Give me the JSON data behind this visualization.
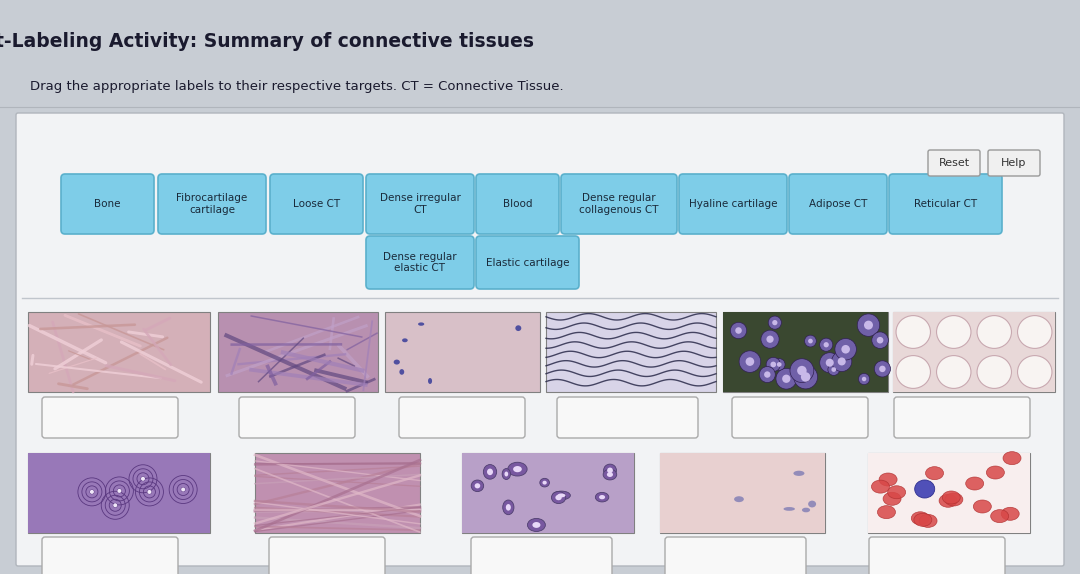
{
  "title": "t-Labeling Activity: Summary of connective tissues",
  "subtitle": "Drag the appropriate labels to their respective targets. CT = Connective Tissue.",
  "page_bg": "#c8cdd4",
  "panel_bg": "#e8eaed",
  "inner_panel_bg": "#f2f3f5",
  "title_color": "#1a1a2e",
  "subtitle_color": "#1a1a2e",
  "button_color": "#7ecde8",
  "button_border": "#5ab0cc",
  "button_text_color": "#1a2a3a",
  "reset_help_bg": "#f0f0f0",
  "reset_help_border": "#999999",
  "empty_box_color": "#f8f8f8",
  "empty_box_border": "#aaaaaa",
  "label_row1": [
    "Bone",
    "Fibrocartilage\ncartilage",
    "Loose CT",
    "Dense irregular\nCT",
    "Blood",
    "Dense regular\ncollagenous CT",
    "Hyaline cartilage",
    "Adipose CT",
    "Reticular CT"
  ],
  "label_row2": [
    "Dense regular\nelastic CT",
    "Elastic cartilage"
  ],
  "img_row1_colors": [
    "#c8a8b0",
    "#b890b0",
    "#d0b8c0",
    "#d0cce0",
    "#5a6850",
    "#ddd0d8"
  ],
  "img_row2_colors": [
    "#a888b8",
    "#c898b8",
    "#b890b8",
    "#d8c0c8",
    "#f0e0e0"
  ]
}
